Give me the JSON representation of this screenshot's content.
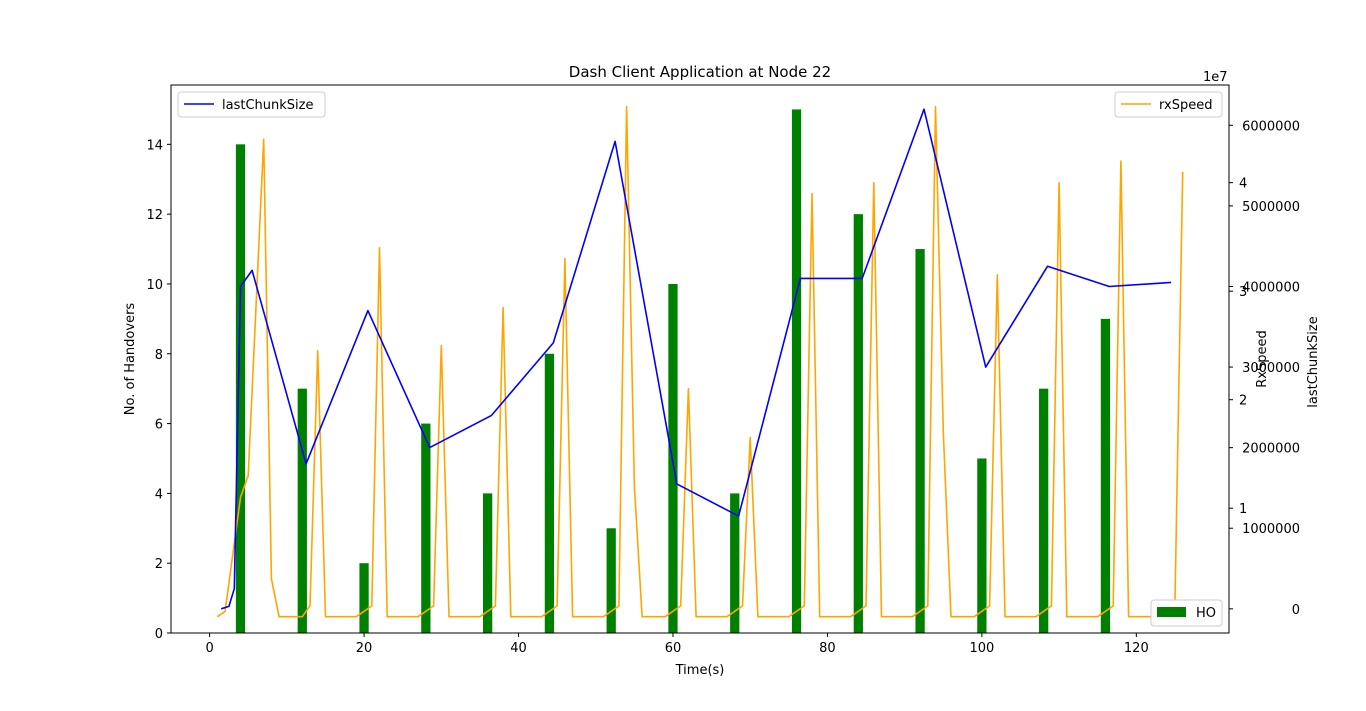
{
  "chart_data": {
    "type": "bar",
    "title": "Dash Client Application at Node 22",
    "xlabel": "Time(s)",
    "ylabel": "No. of Handovers",
    "xlim": [
      -5,
      132
    ],
    "ylim": [
      0,
      15.7
    ],
    "x_ticks": [
      0,
      20,
      40,
      60,
      80,
      100,
      120
    ],
    "y_ticks": [
      0,
      2,
      4,
      6,
      8,
      10,
      12,
      14
    ],
    "bars": {
      "name": "HO",
      "color": "#008000",
      "x": [
        4,
        12,
        20,
        28,
        36,
        44,
        52,
        60,
        68,
        76,
        84,
        92,
        100,
        108,
        116
      ],
      "values": [
        14,
        7,
        2,
        6,
        4,
        8,
        3,
        10,
        4,
        15,
        12,
        11,
        5,
        7,
        9
      ]
    },
    "series": [
      {
        "name": "rxSpeed",
        "axis": "RxSpeed",
        "color": "#ffa500",
        "x": [
          1,
          2,
          4,
          5,
          7,
          8,
          9,
          11,
          12,
          13,
          14,
          15,
          19,
          21,
          22,
          23,
          27,
          29,
          30,
          31,
          35,
          37,
          38,
          39,
          43,
          45,
          46,
          47,
          51,
          53,
          54,
          55,
          56,
          59,
          61,
          62,
          63,
          67,
          69,
          70,
          71,
          75,
          77,
          78,
          79,
          83,
          85,
          86,
          87,
          91,
          93,
          94,
          95,
          96,
          99,
          101,
          102,
          103,
          107,
          109,
          110,
          111,
          115,
          117,
          118,
          119,
          123,
          125,
          126
        ],
        "values": [
          0,
          0.05,
          1.1,
          1.3,
          4.4,
          0.35,
          0,
          0,
          0,
          0.1,
          2.45,
          0,
          0,
          0.1,
          3.4,
          0,
          0,
          0.1,
          2.5,
          0,
          0,
          0.1,
          2.85,
          0,
          0,
          0.1,
          3.3,
          0,
          0,
          0.1,
          4.7,
          1.2,
          0,
          0,
          0.1,
          2.1,
          0,
          0,
          0.1,
          1.65,
          0,
          0,
          0.1,
          3.9,
          0,
          0,
          0.1,
          4.0,
          0,
          0,
          0.1,
          4.7,
          1.7,
          0,
          0,
          0.1,
          3.15,
          0,
          0,
          0.1,
          4.0,
          0,
          0,
          0.1,
          4.2,
          0,
          0,
          0.1,
          4.1
        ]
      },
      {
        "name": "lastChunkSize",
        "axis": "lastChunkSize",
        "color": "#0000ff",
        "x": [
          1.5,
          2.5,
          3.2,
          4,
          5.5,
          12.5,
          20.5,
          28.5,
          36.5,
          44.5,
          52.5,
          60.5,
          68.5,
          76.5,
          84.5,
          92.5,
          100.5,
          108.5,
          116.5,
          124.5
        ],
        "values": [
          0,
          30000,
          250000,
          4000000,
          4200000,
          1800000,
          3700000,
          2000000,
          2400000,
          3300000,
          5800000,
          1550000,
          1150000,
          4100000,
          4100000,
          6200000,
          3000000,
          4250000,
          4000000,
          4050000
        ]
      }
    ],
    "rx_axis": {
      "label": "RxSpeed",
      "range": [
        -0.15,
        4.9
      ],
      "ticks": [
        "1",
        "2",
        "3",
        "4"
      ],
      "tick_values": [
        1,
        2,
        3,
        4
      ],
      "offset_text": "1e7"
    },
    "chunk_axis": {
      "label": "lastChunkSize",
      "range": [
        -300000,
        6500000
      ],
      "ticks": [
        "0",
        "1000000",
        "2000000",
        "3000000",
        "4000000",
        "5000000",
        "6000000"
      ],
      "tick_values": [
        0,
        1000000,
        2000000,
        3000000,
        4000000,
        5000000,
        6000000
      ]
    },
    "legends": {
      "top_left": "lastChunkSize",
      "top_right": "rxSpeed",
      "bottom_right": "HO"
    }
  }
}
